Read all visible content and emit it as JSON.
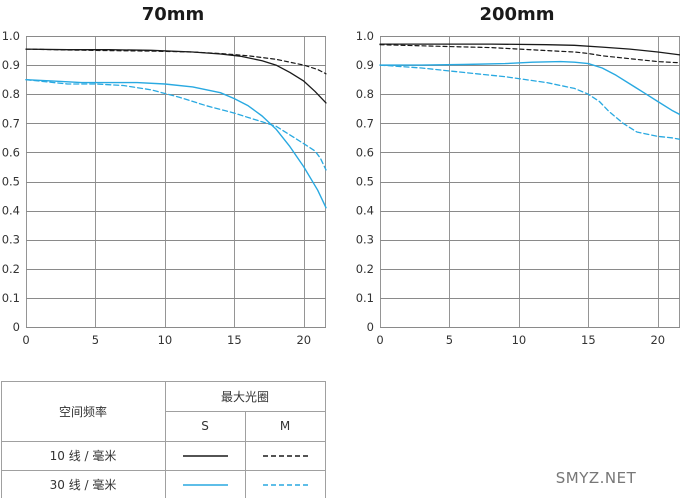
{
  "chart_data": [
    {
      "type": "line",
      "title": "70mm",
      "xlabel": "",
      "ylabel": "",
      "xlim": [
        0,
        21.6
      ],
      "ylim": [
        0,
        1.0
      ],
      "x_ticks": [
        "0",
        "5",
        "10",
        "15",
        "20"
      ],
      "y_ticks": [
        "0",
        "0.1",
        "0.2",
        "0.3",
        "0.4",
        "0.5",
        "0.6",
        "0.7",
        "0.8",
        "0.9",
        "1.0"
      ],
      "grid": true,
      "series": [
        {
          "key": "s10",
          "x": [
            0,
            3,
            6,
            9,
            12,
            14,
            15.5,
            17,
            18,
            19,
            20,
            20.8,
            21.6
          ],
          "y": [
            0.955,
            0.953,
            0.953,
            0.951,
            0.945,
            0.938,
            0.93,
            0.915,
            0.9,
            0.875,
            0.845,
            0.81,
            0.77
          ]
        },
        {
          "key": "m10",
          "x": [
            0,
            3,
            6,
            9,
            12,
            14,
            16,
            18,
            19,
            20,
            21,
            21.6
          ],
          "y": [
            0.955,
            0.952,
            0.95,
            0.948,
            0.945,
            0.94,
            0.932,
            0.92,
            0.91,
            0.9,
            0.885,
            0.87
          ]
        },
        {
          "key": "s30",
          "x": [
            0,
            2,
            4,
            6,
            8,
            10,
            12,
            14,
            15,
            16,
            17,
            18,
            19,
            20,
            21,
            21.6
          ],
          "y": [
            0.85,
            0.845,
            0.84,
            0.84,
            0.84,
            0.835,
            0.825,
            0.805,
            0.785,
            0.76,
            0.725,
            0.68,
            0.62,
            0.55,
            0.47,
            0.41
          ]
        },
        {
          "key": "m30",
          "x": [
            0,
            3,
            5,
            7,
            9,
            11,
            13,
            15,
            16,
            17,
            18,
            19,
            20,
            20.8,
            21.2,
            21.6
          ],
          "y": [
            0.85,
            0.835,
            0.835,
            0.83,
            0.815,
            0.79,
            0.76,
            0.735,
            0.72,
            0.705,
            0.69,
            0.66,
            0.63,
            0.605,
            0.58,
            0.54
          ]
        }
      ]
    },
    {
      "type": "line",
      "title": "200mm",
      "xlabel": "",
      "ylabel": "",
      "xlim": [
        0,
        21.6
      ],
      "ylim": [
        0,
        1.0
      ],
      "x_ticks": [
        "0",
        "5",
        "10",
        "15",
        "20"
      ],
      "y_ticks": [
        "0",
        "0.1",
        "0.2",
        "0.3",
        "0.4",
        "0.5",
        "0.6",
        "0.7",
        "0.8",
        "0.9",
        "1.0"
      ],
      "grid": true,
      "series": [
        {
          "key": "s10",
          "x": [
            0,
            4,
            8,
            12,
            14,
            16,
            18,
            20,
            21.6
          ],
          "y": [
            0.972,
            0.972,
            0.972,
            0.97,
            0.968,
            0.962,
            0.955,
            0.945,
            0.935
          ]
        },
        {
          "key": "m10",
          "x": [
            0,
            4,
            8,
            12,
            14,
            15,
            16,
            18,
            20,
            21.6
          ],
          "y": [
            0.97,
            0.965,
            0.96,
            0.95,
            0.945,
            0.94,
            0.932,
            0.922,
            0.912,
            0.908
          ]
        },
        {
          "key": "s30",
          "x": [
            0,
            3,
            6,
            9,
            11,
            13,
            14,
            15,
            16,
            17,
            18,
            19,
            20,
            21,
            21.6
          ],
          "y": [
            0.9,
            0.9,
            0.902,
            0.905,
            0.91,
            0.912,
            0.91,
            0.905,
            0.89,
            0.865,
            0.835,
            0.805,
            0.775,
            0.745,
            0.73
          ]
        },
        {
          "key": "m30",
          "x": [
            0,
            3,
            6,
            9,
            12,
            14,
            15,
            15.8,
            16.5,
            17.5,
            18.5,
            20,
            21,
            21.6
          ],
          "y": [
            0.9,
            0.89,
            0.875,
            0.86,
            0.84,
            0.82,
            0.8,
            0.775,
            0.74,
            0.7,
            0.67,
            0.655,
            0.65,
            0.645
          ]
        }
      ]
    }
  ],
  "legend_table": {
    "row_header": "空间频率",
    "column_group": "最大光圈",
    "columns": [
      "S",
      "M"
    ],
    "rows": [
      "10 线 / 毫米",
      "30 线 / 毫米"
    ]
  },
  "watermark": "SMYZ.NET",
  "colors": {
    "lp10": "#1a1a1a",
    "lp30": "#29a9e1",
    "grid": "#8a8a8a",
    "table_border": "#a0a0a0"
  }
}
